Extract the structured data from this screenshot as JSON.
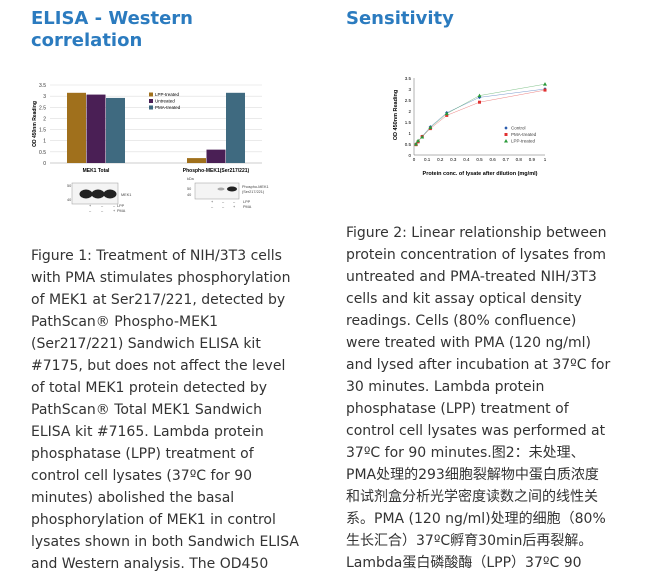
{
  "left": {
    "title_lines": [
      "ELISA - Western",
      "correlation"
    ],
    "caption_lines": [
      "Figure 1: Treatment of NIH/3T3 cells",
      "with PMA stimulates phosphorylation",
      "of MEK1 at Ser217/221, detected by",
      "PathScan® Phospho-MEK1",
      "(Ser217/221) Sandwich ELISA kit",
      "#7175, but does not affect the level",
      "of total MEK1 protein detected by",
      "PathScan® Total MEK1 Sandwich",
      "ELISA kit #7165. Lambda protein",
      "phosphatase (LPP) treatment of",
      "control cell lysates (37ºC for 90",
      "minutes) abolished the basal",
      "phosphorylation of MEK1 in control",
      "lysates shown in both Sandwich ELISA",
      "and Western analysis. The OD450"
    ],
    "blots": {
      "kda": "kDa",
      "m50": "50",
      "m40": "40",
      "label1": "MEK1",
      "label2a": "Phospho-MEK1",
      "label2b": "(Ser217/221)",
      "lpp": "LPP",
      "pma": "PMA",
      "lpp_row": [
        "+",
        "–",
        "–"
      ],
      "pma_row": [
        "–",
        "–",
        "+"
      ]
    }
  },
  "right": {
    "title_lines": [
      "Sensitivity"
    ],
    "caption_lines": [
      "Figure 2: Linear relationship between",
      "protein concentration of lysates from",
      "untreated and PMA-treated NIH/3T3",
      "cells and kit assay optical density",
      "readings. Cells (80% confluence)",
      "were treated with PMA (120 ng/ml)",
      "and lysed after incubation at 37ºC for",
      "30 minutes. Lambda protein",
      "phosphatase (LPP) treatment of",
      "control cell lysates was performed at",
      "37ºC for 90 minutes.图2：未处理、",
      "PMA处理的293细胞裂解物中蛋白质浓度",
      "和试剂盒分析光学密度读数之间的线性关",
      "系。PMA (120 ng/ml)处理的细胞（80%",
      "生长汇合）37ºC孵育30min后再裂解。",
      "Lambda蛋白磷酸酶（LPP）37ºC 90"
    ]
  },
  "chart_data": [
    {
      "type": "bar",
      "ylabel": "OD 450nm Reading",
      "ylim": [
        0,
        3.5
      ],
      "yticks": [
        "0",
        "0.5",
        "1",
        "1.5",
        "2",
        "2.5",
        "3",
        "3.5"
      ],
      "categories": [
        "MEK1 Total",
        "Phospho-MEK1(Ser217/221)"
      ],
      "series": [
        {
          "name": "LPP-treated",
          "color": "#a0701c",
          "values": [
            3.15,
            0.22
          ]
        },
        {
          "name": "Untreated",
          "color": "#4a1f55",
          "values": [
            3.07,
            0.6
          ]
        },
        {
          "name": "PMA-treated",
          "color": "#3f6a80",
          "values": [
            2.92,
            3.15
          ]
        }
      ],
      "legend": "top-right"
    },
    {
      "type": "line",
      "xlabel": "Protein conc. of lysate after dilution (mg/ml)",
      "ylabel": "OD 450nm Reading",
      "xlim": [
        0,
        1
      ],
      "ylim": [
        0,
        3.5
      ],
      "xticks": [
        "0",
        "0.1",
        "0.2",
        "0.3",
        "0.4",
        "0.5",
        "0.6",
        "0.7",
        "0.8",
        "0.9",
        "1"
      ],
      "yticks": [
        "0",
        "0.5",
        "1",
        "1.5",
        "2",
        "2.5",
        "3",
        "3.5"
      ],
      "x": [
        0.0156,
        0.03125,
        0.0625,
        0.125,
        0.25,
        0.5,
        1
      ],
      "series": [
        {
          "name": "Control",
          "color": "#2255aa",
          "marker": "diamond",
          "values": [
            0.5,
            0.62,
            0.85,
            1.28,
            1.92,
            2.62,
            3.0
          ]
        },
        {
          "name": "PMA-treated",
          "color": "#e03030",
          "marker": "square",
          "values": [
            0.47,
            0.6,
            0.84,
            1.2,
            1.8,
            2.4,
            2.95
          ]
        },
        {
          "name": "LPP-treated",
          "color": "#2a9a3a",
          "marker": "triangle",
          "values": [
            0.5,
            0.65,
            0.82,
            1.25,
            1.88,
            2.7,
            3.22
          ]
        }
      ],
      "legend": "right"
    }
  ]
}
